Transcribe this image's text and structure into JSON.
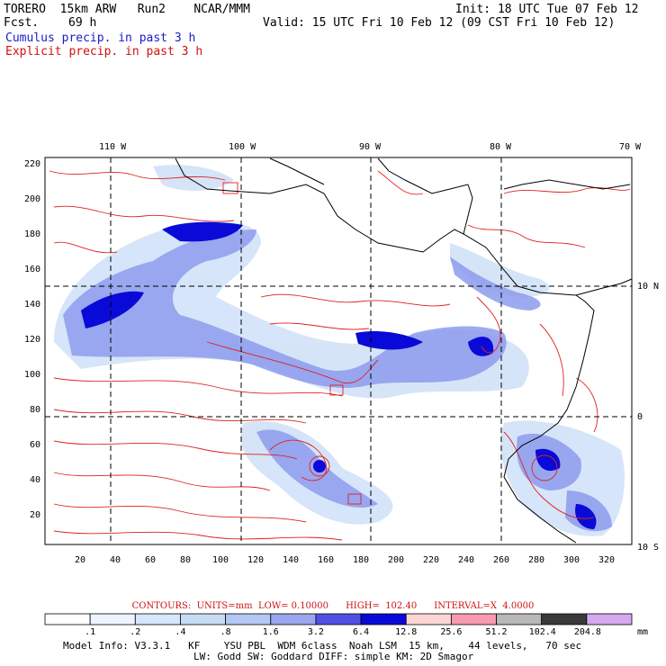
{
  "header": {
    "model": "TORERO  15km ARW   Run2    NCAR/MMM",
    "fcst_label": "Fcst.",
    "fcst_value": "69 h",
    "init": "Init: 18 UTC Tue 07 Feb 12",
    "valid": "Valid: 15 UTC Fri 10 Feb 12 (09 CST Fri 10 Feb 12)",
    "legend_cumulus": "Cumulus precip. in past 3 h",
    "legend_explicit": "Explicit precip. in past 3 h"
  },
  "map": {
    "lon_labels": [
      "110 W",
      "100 W",
      "90 W",
      "80 W",
      "70 W"
    ],
    "lat_labels": [
      "10 N",
      "0",
      "10 S"
    ],
    "y_ticks": [
      "220",
      "200",
      "180",
      "160",
      "140",
      "120",
      "100",
      "80",
      "60",
      "40",
      "20"
    ],
    "x_ticks": [
      "20",
      "40",
      "60",
      "80",
      "100",
      "120",
      "140",
      "160",
      "180",
      "200",
      "220",
      "240",
      "260",
      "280",
      "300",
      "320"
    ]
  },
  "contours": {
    "label": "CONTOURS:  UNITS=mm  LOW= 0.10000      HIGH=  102.40      INTERVAL=X  4.0000"
  },
  "scale": {
    "values": [
      ".1",
      ".2",
      ".4",
      ".8",
      "1.6",
      "3.2",
      "6.4",
      "12.8",
      "25.6",
      "51.2",
      "102.4",
      "204.8"
    ],
    "unit": "mm",
    "colors": [
      "#ffffff",
      "#eef4ff",
      "#d6e6fb",
      "#c8dcf6",
      "#b4c8f5",
      "#9aa6ee",
      "#5050e6",
      "#0a0ad8",
      "#fcd6d6",
      "#f79ab2",
      "#b8b8b8",
      "#3a3a3a",
      "#d6a8f0"
    ]
  },
  "model_info": {
    "line1": "Model Info: V3.3.1   KF    YSU PBL  WDM 6class  Noah LSM  15 km,    44 levels,   70 sec",
    "line2": "LW: Godd SW: Goddard DIFF: simple KM: 2D Smagor"
  }
}
